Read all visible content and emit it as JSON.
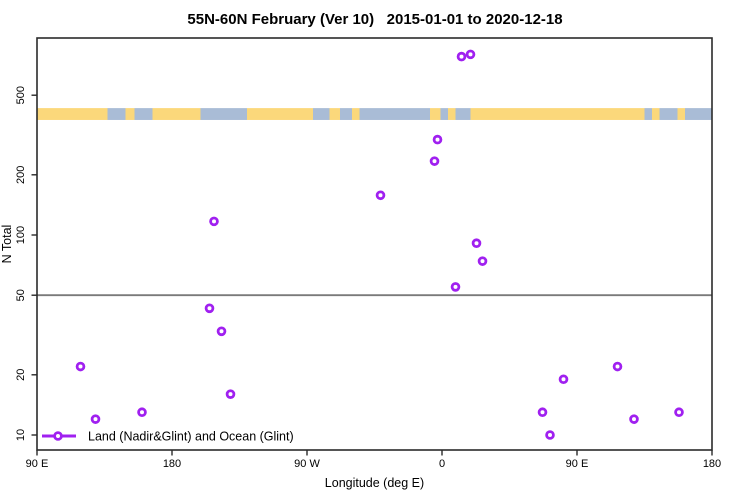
{
  "chart_data": {
    "type": "scatter",
    "title": "55N-60N February (Ver 10)   2015-01-01 to 2020-12-18",
    "xlabel": "Longitude (deg E)",
    "ylabel": "N Total",
    "x_axis": {
      "scale": "linear",
      "range_axis_deg_e": [
        90,
        540
      ],
      "ticks": [
        {
          "lon": 90,
          "label": "90 E"
        },
        {
          "lon": 180,
          "label": "180"
        },
        {
          "lon": 270,
          "label": "90 W"
        },
        {
          "lon": 360,
          "label": "0"
        },
        {
          "lon": 450,
          "label": "90 E"
        },
        {
          "lon": 540,
          "label": "180"
        }
      ]
    },
    "y_axis": {
      "scale": "log",
      "range": [
        8.4,
        970
      ],
      "ticks": [
        10,
        20,
        50,
        100,
        200,
        500
      ]
    },
    "reference_line_n": 50,
    "points": [
      {
        "lon": 373,
        "n": 780
      },
      {
        "lon": 379,
        "n": 800
      },
      {
        "lon": 357,
        "n": 300
      },
      {
        "lon": 355,
        "n": 234
      },
      {
        "lon": 319,
        "n": 158
      },
      {
        "lon": 208,
        "n": 117
      },
      {
        "lon": 383,
        "n": 91
      },
      {
        "lon": 387,
        "n": 74
      },
      {
        "lon": 369,
        "n": 55
      },
      {
        "lon": 205,
        "n": 43
      },
      {
        "lon": 213,
        "n": 33
      },
      {
        "lon": 119,
        "n": 22
      },
      {
        "lon": 477,
        "n": 22
      },
      {
        "lon": 441,
        "n": 19
      },
      {
        "lon": 219,
        "n": 16
      },
      {
        "lon": 160,
        "n": 13
      },
      {
        "lon": 427,
        "n": 13
      },
      {
        "lon": 518,
        "n": 13
      },
      {
        "lon": 129,
        "n": 12
      },
      {
        "lon": 488,
        "n": 12
      },
      {
        "lon": 432,
        "n": 10
      }
    ],
    "map_band": {
      "n_range": [
        376,
        431
      ],
      "segments": [
        {
          "from": 90,
          "to": 137,
          "type": "land"
        },
        {
          "from": 137,
          "to": 149,
          "type": "ocean"
        },
        {
          "from": 149,
          "to": 155,
          "type": "land"
        },
        {
          "from": 155,
          "to": 167,
          "type": "ocean"
        },
        {
          "from": 167,
          "to": 199,
          "type": "land"
        },
        {
          "from": 199,
          "to": 230,
          "type": "ocean"
        },
        {
          "from": 230,
          "to": 274,
          "type": "land"
        },
        {
          "from": 274,
          "to": 285,
          "type": "ocean"
        },
        {
          "from": 285,
          "to": 292,
          "type": "land"
        },
        {
          "from": 292,
          "to": 300,
          "type": "ocean"
        },
        {
          "from": 300,
          "to": 305,
          "type": "land"
        },
        {
          "from": 305,
          "to": 352,
          "type": "ocean"
        },
        {
          "from": 352,
          "to": 359,
          "type": "land"
        },
        {
          "from": 359,
          "to": 364,
          "type": "ocean"
        },
        {
          "from": 364,
          "to": 369,
          "type": "land"
        },
        {
          "from": 369,
          "to": 379,
          "type": "ocean"
        },
        {
          "from": 379,
          "to": 495,
          "type": "land"
        },
        {
          "from": 495,
          "to": 500,
          "type": "ocean"
        },
        {
          "from": 500,
          "to": 505,
          "type": "land"
        },
        {
          "from": 505,
          "to": 517,
          "type": "ocean"
        },
        {
          "from": 517,
          "to": 522,
          "type": "land"
        },
        {
          "from": 522,
          "to": 540,
          "type": "ocean"
        }
      ]
    },
    "legend": {
      "label": "Land (Nadir&Glint) and Ocean (Glint)"
    },
    "colors": {
      "point": "#A020F0",
      "land": "#FBD87B",
      "ocean": "#A9BCD6",
      "reference_line": "#7a7a7a",
      "box": "#2b2b2b",
      "text": "#000000"
    },
    "grid": "off",
    "legend_position": "bottom-left"
  }
}
